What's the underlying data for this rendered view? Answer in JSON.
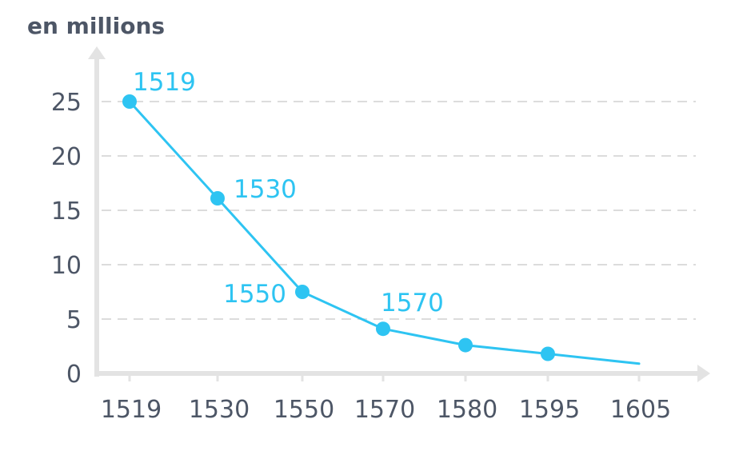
{
  "chart_data": {
    "type": "line",
    "ylabel": "en millions",
    "xlabel": "",
    "categories": [
      "1519",
      "1530",
      "1550",
      "1570",
      "1580",
      "1595",
      "1605"
    ],
    "series": [
      {
        "values": [
          25,
          16.1,
          7.5,
          4.1,
          2.6,
          1.8,
          0.9
        ]
      }
    ],
    "markers": [
      true,
      true,
      true,
      true,
      true,
      true,
      false
    ],
    "data_labels": [
      {
        "index": 0,
        "text": "1519"
      },
      {
        "index": 1,
        "text": "1530"
      },
      {
        "index": 2,
        "text": "1550"
      },
      {
        "index": 3,
        "text": "1570"
      }
    ],
    "yticks": [
      0,
      5,
      10,
      15,
      20,
      25
    ],
    "ylim": [
      0,
      28
    ],
    "grid": true,
    "colors": {
      "line": "#2ec4f2",
      "axis": "#e3e3e3",
      "grid": "#dcdcdc",
      "text": "#4d5666"
    }
  }
}
